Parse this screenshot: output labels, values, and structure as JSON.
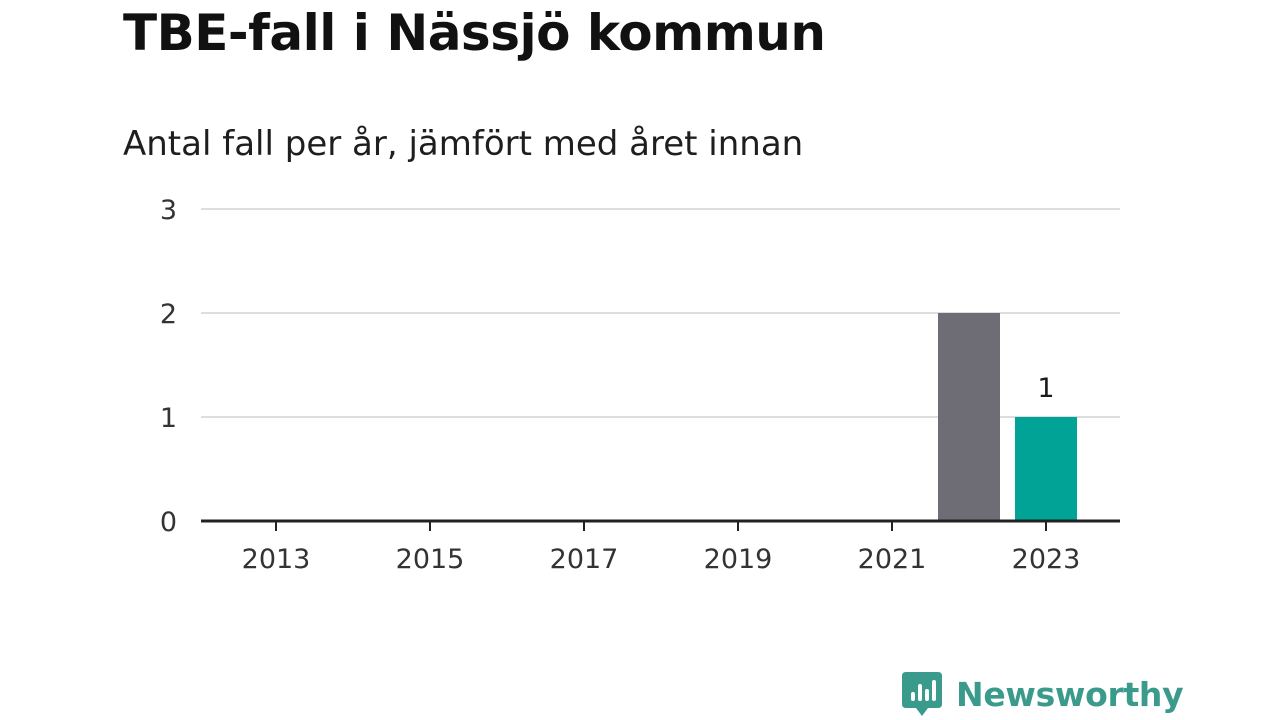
{
  "title": "TBE-fall i Nässjö kommun",
  "subtitle": "Antal fall per år, jämfört med året innan",
  "brand": {
    "name": "Newsworthy",
    "icon": "newsworthy-logo-icon",
    "color": "#3a9a8c"
  },
  "chart_data": {
    "type": "bar",
    "x": [
      2013,
      2014,
      2015,
      2016,
      2017,
      2018,
      2019,
      2020,
      2021,
      2022,
      2023
    ],
    "x_tick_labels": [
      "2013",
      "2015",
      "2017",
      "2019",
      "2021",
      "2023"
    ],
    "values": [
      0,
      0,
      0,
      0,
      0,
      0,
      0,
      0,
      0,
      2,
      1
    ],
    "colors": {
      "previous_year": "#6e6d75",
      "current_year": "#00a396"
    },
    "highlight": {
      "x": 2023,
      "label": "1"
    },
    "y_ticks": [
      0,
      1,
      2,
      3
    ],
    "ylim": [
      0,
      3
    ],
    "grid": true,
    "legend": "none"
  }
}
